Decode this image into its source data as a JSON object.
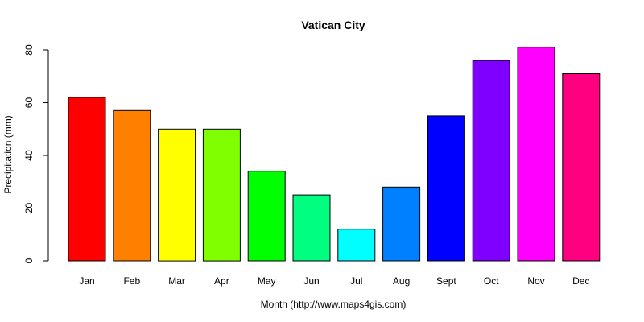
{
  "chart_data": {
    "type": "bar",
    "title": "Vatican City",
    "xlabel": "Month (http://www.maps4gis.com)",
    "ylabel": "Precipitation (mm)",
    "categories": [
      "Jan",
      "Feb",
      "Mar",
      "Apr",
      "May",
      "Jun",
      "Jul",
      "Aug",
      "Sept",
      "Oct",
      "Nov",
      "Dec"
    ],
    "values": [
      62,
      57,
      50,
      50,
      34,
      25,
      12,
      28,
      55,
      76,
      81,
      71
    ],
    "colors": [
      "#FF0000",
      "#FF8000",
      "#FFFF00",
      "#80FF00",
      "#00FF00",
      "#00FF80",
      "#00FFFF",
      "#0080FF",
      "#0000FF",
      "#8000FF",
      "#FF00FF",
      "#FF0080"
    ],
    "ylim": [
      0,
      80
    ],
    "yticks": [
      0,
      20,
      40,
      60,
      80
    ],
    "grid": false,
    "legend": "none"
  }
}
